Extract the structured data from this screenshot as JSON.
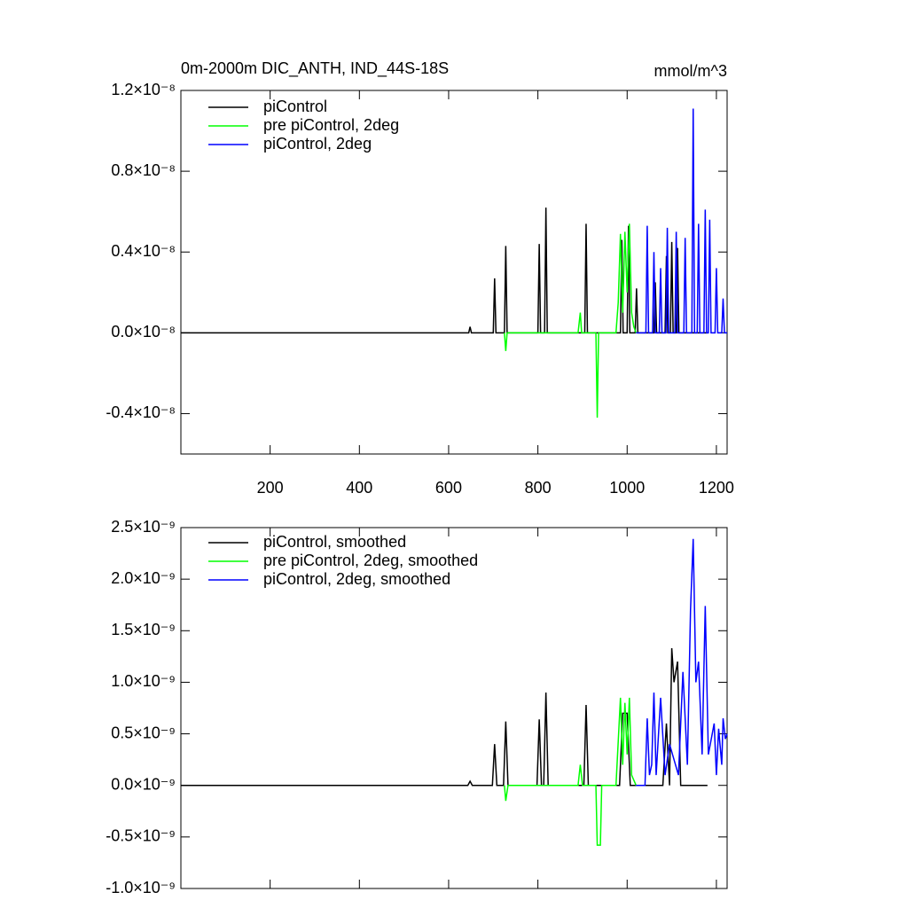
{
  "chart_data": [
    {
      "type": "line",
      "title": "0m-2000m DIC_ANTH, IND_44S-18S",
      "units": "mmol/m^3",
      "xlim": [
        0,
        1224
      ],
      "xticks": [
        200,
        400,
        600,
        800,
        1000,
        1200
      ],
      "ylim": [
        -6e-09,
        1.2e-08
      ],
      "yticks": [
        {
          "value": -4e-09,
          "label": "-0.4×10⁻⁸"
        },
        {
          "value": 0,
          "label": "0.0×10⁻⁸"
        },
        {
          "value": 4e-09,
          "label": "0.4×10⁻⁸"
        },
        {
          "value": 8e-09,
          "label": "0.8×10⁻⁸"
        },
        {
          "value": 1.2e-08,
          "label": "1.2×10⁻⁸"
        }
      ],
      "series": [
        {
          "name": "piControl",
          "color": "#000000",
          "x": [
            1,
            645,
            648,
            651,
            700,
            703,
            706,
            725,
            728,
            731,
            800,
            803,
            806,
            815,
            818,
            821,
            905,
            908,
            911,
            985,
            988,
            991,
            1000,
            1003,
            1006,
            1018,
            1021,
            1024,
            1060,
            1063,
            1066,
            1085,
            1088,
            1091,
            1097,
            1100,
            1103,
            1110,
            1113,
            1116,
            1180
          ],
          "values": [
            0,
            0,
            3e-10,
            0,
            0,
            2.7e-09,
            0,
            0,
            4.3e-09,
            0,
            0,
            4.4e-09,
            0,
            0,
            6.2e-09,
            0,
            0,
            5.4e-09,
            0,
            0,
            4.6e-09,
            0,
            0,
            5.3e-09,
            0,
            0,
            2.2e-09,
            0,
            0,
            2.5e-09,
            0,
            0,
            3.8e-09,
            0,
            0,
            4.5e-09,
            0,
            0,
            4.2e-09,
            0,
            0
          ]
        },
        {
          "name": "pre piControl, 2deg",
          "color": "#00ff00",
          "x": [
            725,
            728,
            731,
            890,
            895,
            898,
            930,
            933,
            936,
            975,
            980,
            985,
            990,
            995,
            1000,
            1005,
            1010,
            1015,
            1020
          ],
          "values": [
            0,
            -9e-10,
            0,
            0,
            1e-09,
            0,
            0,
            -4.2e-09,
            0,
            0,
            1.5e-09,
            4.9e-09,
            1e-09,
            5e-09,
            2e-09,
            5.4e-09,
            1e-09,
            3e-10,
            0
          ]
        },
        {
          "name": "piControl, 2deg",
          "color": "#0000ff",
          "x": [
            1020,
            1042,
            1045,
            1048,
            1057,
            1060,
            1063,
            1072,
            1075,
            1078,
            1087,
            1090,
            1093,
            1107,
            1110,
            1113,
            1127,
            1130,
            1133,
            1145,
            1148,
            1151,
            1157,
            1160,
            1163,
            1172,
            1175,
            1178,
            1182,
            1185,
            1188,
            1197,
            1200,
            1203,
            1212,
            1215,
            1218,
            1224
          ],
          "values": [
            0,
            0,
            5.3e-09,
            0,
            0,
            4e-09,
            0,
            0,
            3.2e-09,
            0,
            0,
            5.2e-09,
            0,
            0,
            5e-09,
            0,
            0,
            4.7e-09,
            0,
            0,
            1.11e-08,
            0,
            0,
            5.4e-09,
            0,
            0,
            6.1e-09,
            0,
            0,
            5.6e-09,
            0,
            0,
            3.2e-09,
            0,
            0,
            1.7e-09,
            0,
            0
          ]
        }
      ]
    },
    {
      "type": "line",
      "xlim": [
        0,
        1224
      ],
      "xticks": [
        200,
        400,
        600,
        800,
        1000,
        1200
      ],
      "ylim": [
        -1e-09,
        2.5e-09
      ],
      "yticks": [
        {
          "value": -1e-09,
          "label": "-1.0×10⁻⁹"
        },
        {
          "value": -5e-10,
          "label": "-0.5×10⁻⁹"
        },
        {
          "value": 0,
          "label": "0.0×10⁻⁹"
        },
        {
          "value": 5e-10,
          "label": "0.5×10⁻⁹"
        },
        {
          "value": 1e-09,
          "label": "1.0×10⁻⁹"
        },
        {
          "value": 1.5e-09,
          "label": "1.5×10⁻⁹"
        },
        {
          "value": 2e-09,
          "label": "2.0×10⁻⁹"
        },
        {
          "value": 2.5e-09,
          "label": "2.5×10⁻⁹"
        }
      ],
      "series": [
        {
          "name": "piControl, smoothed",
          "color": "#000000",
          "x": [
            1,
            643,
            648,
            653,
            698,
            703,
            708,
            723,
            728,
            733,
            798,
            803,
            808,
            813,
            818,
            823,
            903,
            908,
            913,
            983,
            990,
            1000,
            1007,
            1080,
            1088,
            1095,
            1100,
            1105,
            1113,
            1120,
            1180
          ],
          "values": [
            0,
            0,
            4e-11,
            0,
            0,
            4e-10,
            0,
            0,
            6.2e-10,
            0,
            0,
            6.4e-10,
            0,
            0,
            9e-10,
            0,
            0,
            7.8e-10,
            0,
            0,
            7e-10,
            7e-10,
            0,
            0,
            6e-10,
            0,
            1.33e-09,
            1e-09,
            1.2e-09,
            0,
            0
          ]
        },
        {
          "name": "pre piControl, 2deg, smoothed",
          "color": "#00ff00",
          "x": [
            725,
            728,
            733,
            890,
            895,
            900,
            930,
            933,
            940,
            943,
            975,
            985,
            990,
            995,
            1000,
            1005,
            1010,
            1020
          ],
          "values": [
            0,
            -1.5e-10,
            0,
            0,
            2e-10,
            0,
            0,
            -5.8e-10,
            -5.8e-10,
            0,
            0,
            8.5e-10,
            2e-10,
            8e-10,
            3e-10,
            8.5e-10,
            1e-10,
            0
          ]
        },
        {
          "name": "piControl, 2deg, smoothed",
          "color": "#0000ff",
          "x": [
            1020,
            1040,
            1045,
            1050,
            1055,
            1060,
            1065,
            1075,
            1085,
            1095,
            1115,
            1125,
            1135,
            1142,
            1148,
            1154,
            1160,
            1168,
            1175,
            1182,
            1195,
            1200,
            1205,
            1212,
            1215,
            1220,
            1224
          ],
          "values": [
            0,
            0,
            6.5e-10,
            1e-10,
            2e-10,
            9e-10,
            1e-10,
            8.5e-10,
            1e-10,
            4e-10,
            1e-10,
            1.1e-09,
            2e-10,
            1.7e-09,
            2.39e-09,
            1e-09,
            1.2e-09,
            3e-10,
            1.74e-09,
            3e-10,
            6e-10,
            1e-10,
            5.5e-10,
            2e-10,
            6.5e-10,
            4.5e-10,
            5e-10
          ]
        }
      ]
    }
  ]
}
